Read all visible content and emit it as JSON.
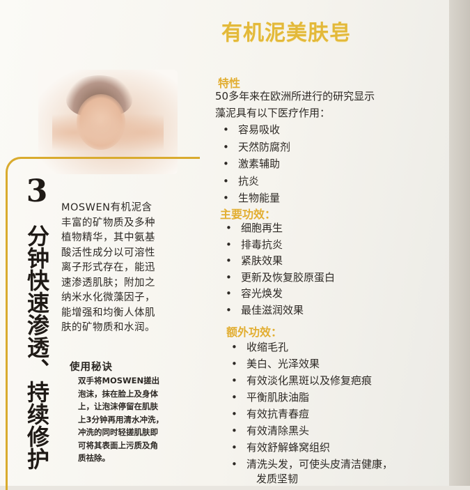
{
  "title": "有机泥美肤皂",
  "left": {
    "headline_num": "3",
    "headline_text": "分钟快速渗透、持续修护",
    "intro_lines": [
      "MOSWEN有机泥含",
      "丰富的矿物质及多种",
      "植物精华，其中氨基",
      "酸活性成分以可溶性",
      "离子形式存在，能迅",
      "速渗透肌肤；附加之",
      "纳米水化微藻因子，",
      "能增强和均衡人体肌",
      "肤的矿物质和水润。"
    ],
    "usage_title": "使用秘诀",
    "usage_lines": [
      "双手将MOSWEN搓出",
      "泡沫，抹在脸上及身体",
      "上，让泡沫停留在肌肤",
      "上3分钟再用清水冲洗，",
      "冲洗的同时轻搓肌肤即",
      "可将其表面上污质及角",
      "质祛除。"
    ]
  },
  "features": {
    "heading": "特性",
    "intro_lines": [
      "50多年来在欧洲所进行的研究显示",
      "藻泥具有以下医疗作用："
    ],
    "items": [
      "容易吸收",
      "天然防腐剂",
      "激素辅助",
      "抗炎",
      "生物能量"
    ]
  },
  "main_benefits": {
    "heading": "主要功效：",
    "items": [
      "细胞再生",
      "排毒抗炎",
      "紧肤效果",
      "更新及恢复胶原蛋白",
      "容光焕发",
      "最佳滋润效果"
    ]
  },
  "extra_benefits": {
    "heading": "额外功效：",
    "items": [
      "收缩毛孔",
      "美白、光泽效果",
      "有效淡化黑斑以及修复疤痕",
      "平衡肌肤油脂",
      "有效抗青春痘",
      "有效清除黑头",
      "有效舒解蜂窝组织",
      "清洗头发，可使头皮清洁健康，"
    ],
    "continuation": "发质坚韧"
  },
  "colors": {
    "gold": "#e2ae32",
    "frame": "#d9ab2e",
    "text": "#2d2925"
  }
}
